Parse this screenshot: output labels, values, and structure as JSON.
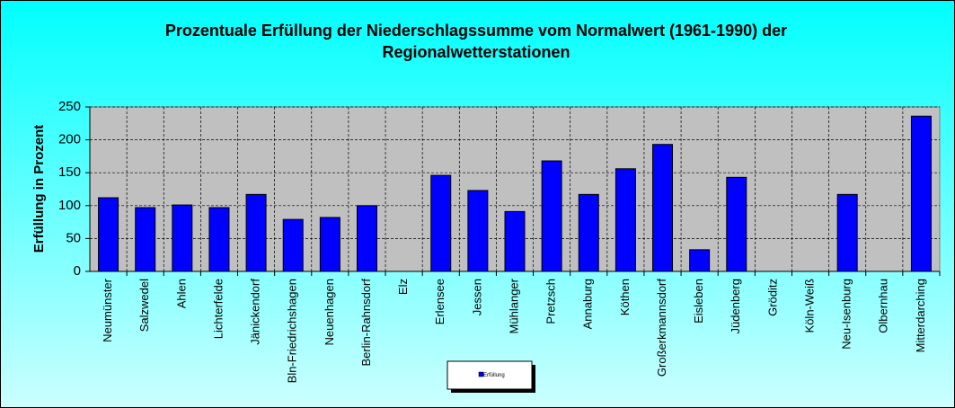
{
  "chart_data": {
    "type": "bar",
    "title": "Prozentuale Erfüllung der Niederschlagssumme vom Normalwert (1961-1990) der Regionalwetterstationen",
    "y_axis_label": "Erfüllung  in Prozent",
    "categories": [
      "Neumünster",
      "Salzwedel",
      "Ahlen",
      "Lichterfelde",
      "Jänickendorf",
      "Bln-Friedrichshagen",
      "Neuenhagen",
      "Berlin-Rahnsdorf",
      "Elz",
      "Erlensee",
      "Jessen",
      "Mühlanger",
      "Pretzsch",
      "Annaburg",
      "Köthen",
      "Großerkmannsdorf",
      "Eisleben",
      "Jüdenberg",
      "Gröditz",
      "Köln-Weiß",
      "Neu-Isenburg",
      "Olbernhau",
      "Mitterdarching"
    ],
    "series": [
      {
        "name": "Erfüllung",
        "color": "#0000ff",
        "values": [
          112,
          97,
          101,
          97,
          117,
          79,
          82,
          100,
          null,
          146,
          123,
          91,
          168,
          117,
          156,
          193,
          33,
          143,
          null,
          null,
          117,
          null,
          236
        ]
      }
    ],
    "ylim": [
      0,
      250
    ],
    "yticks": [
      0,
      50,
      100,
      150,
      200,
      250
    ],
    "grid": true
  }
}
